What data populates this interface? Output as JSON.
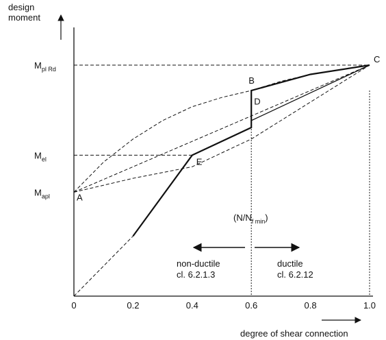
{
  "chart_data": {
    "type": "line",
    "ylabel_lines": [
      "design",
      "moment"
    ],
    "xlabel": "degree of shear connection",
    "xlim": [
      0,
      1.0
    ],
    "x_ticks": [
      "0",
      "0.2",
      "0.4",
      "0.6",
      "0.8",
      "1.0"
    ],
    "y_ticks": [
      {
        "main": "M",
        "sub": "pl Rd",
        "value": 1.0
      },
      {
        "main": "M",
        "sub": "el",
        "value": 0.61
      },
      {
        "main": "M",
        "sub": "apl",
        "value": 0.45
      }
    ],
    "points": [
      {
        "label": "A",
        "x": 0.0,
        "y": 0.45
      },
      {
        "label": "B",
        "x": 0.6,
        "y": 0.89
      },
      {
        "label": "C",
        "x": 1.0,
        "y": 1.0
      },
      {
        "label": "D",
        "x": 0.6,
        "y": 0.8
      },
      {
        "label": "E",
        "x": 0.4,
        "y": 0.61
      }
    ],
    "series": [
      {
        "style": "solid",
        "x": [
          0.2,
          0.4,
          0.6,
          0.6,
          0.6,
          0.8,
          1.0
        ],
        "y": [
          0.26,
          0.61,
          0.73,
          0.78,
          0.89,
          0.96,
          1.0
        ]
      },
      {
        "style": "solid-thin",
        "x": [
          0.6,
          0.8,
          1.0
        ],
        "y": [
          0.76,
          0.88,
          1.0
        ]
      },
      {
        "style": "dashed",
        "x": [
          0.0,
          0.1,
          0.2,
          0.3,
          0.4,
          0.5,
          0.6,
          0.7,
          0.8,
          0.9,
          1.0
        ],
        "y": [
          0.45,
          0.58,
          0.68,
          0.76,
          0.82,
          0.86,
          0.89,
          0.93,
          0.96,
          0.98,
          1.0
        ]
      },
      {
        "style": "dashed",
        "x": [
          0.0,
          0.2,
          0.4,
          0.6,
          0.8,
          1.0
        ],
        "y": [
          0.45,
          0.51,
          0.56,
          0.68,
          0.84,
          1.0
        ]
      },
      {
        "style": "dashed",
        "x": [
          0.0,
          0.2,
          0.4,
          0.6,
          0.8,
          1.0
        ],
        "y": [
          0.45,
          0.56,
          0.67,
          0.78,
          0.89,
          1.0
        ]
      },
      {
        "style": "dashed",
        "x": [
          0.0,
          0.2
        ],
        "y": [
          0.0,
          0.26
        ]
      }
    ],
    "reference_lines": [
      {
        "label": "(N/N",
        "sub": "f min",
        "close": ")",
        "x": 0.6
      },
      {
        "x": 1.0
      }
    ],
    "annotations": {
      "left_text": [
        "non-ductile",
        "cl. 6.2.1.3"
      ],
      "right_text": [
        "ductile",
        "cl. 6.2.12"
      ]
    },
    "grid": false
  }
}
